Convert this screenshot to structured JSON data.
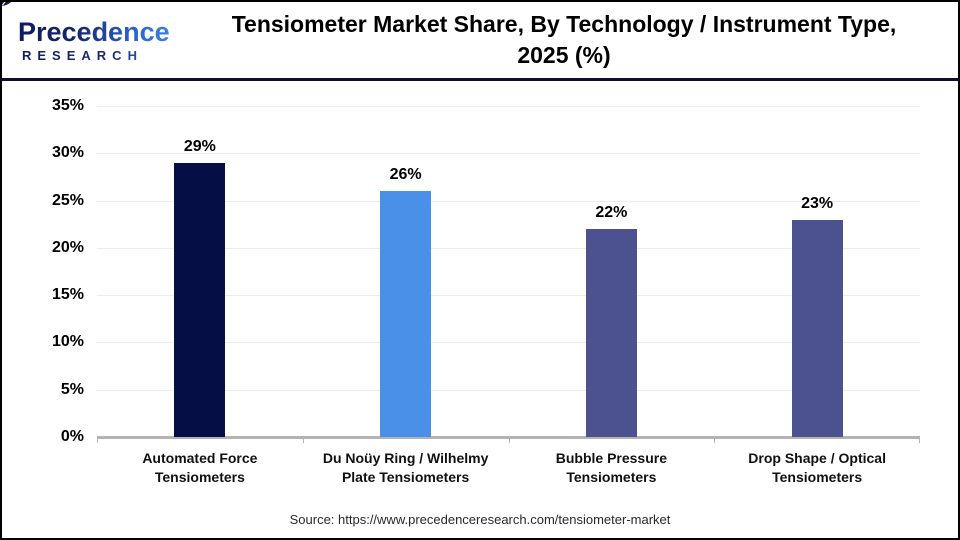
{
  "logo": {
    "brand": "Precedence",
    "research": "RESEARCH"
  },
  "header": {
    "title_line1": "Tensiometer Market Share, By Technology / Instrument Type,",
    "title_line2": "2025 (%)"
  },
  "chart_data": {
    "type": "bar",
    "title": "Tensiometer Market Share, By Technology / Instrument Type, 2025 (%)",
    "categories": [
      "Automated Force Tensiometers",
      "Du Noüy Ring / Wilhelmy Plate Tensiometers",
      "Bubble Pressure Tensiometers",
      "Drop Shape / Optical Tensiometers"
    ],
    "values": [
      29,
      26,
      22,
      23
    ],
    "value_labels": [
      "29%",
      "26%",
      "22%",
      "23%"
    ],
    "bar_colors": [
      "#060f45",
      "#4a90e8",
      "#4c5190",
      "#4c5190"
    ],
    "xlabel": "",
    "ylabel": "",
    "ylim": [
      0,
      35
    ],
    "ytick_values": [
      0,
      5,
      10,
      15,
      20,
      25,
      30,
      35
    ],
    "ytick_labels": [
      "0%",
      "5%",
      "10%",
      "15%",
      "20%",
      "25%",
      "30%",
      "35%"
    ],
    "grid": true,
    "legend_position": "none",
    "gridline_color": "#ececec",
    "axis_color": "#b3b3b3"
  },
  "footer": {
    "source": "Source: https://www.precedenceresearch.com/tensiometer-market"
  }
}
